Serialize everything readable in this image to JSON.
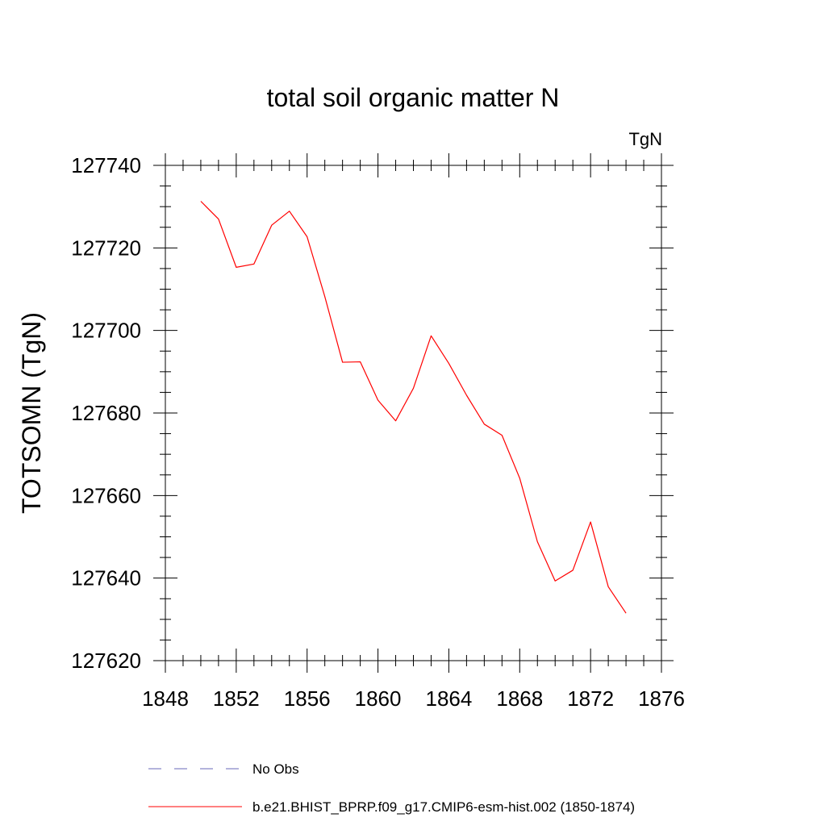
{
  "chart_data": {
    "type": "line",
    "title": "total soil organic matter N",
    "units_label": "TgN",
    "xlabel": "",
    "ylabel": "TOTSOMN  (TgN)",
    "xlim": [
      1848,
      1876
    ],
    "ylim": [
      127620,
      127740
    ],
    "xticks": [
      1848,
      1852,
      1856,
      1860,
      1864,
      1868,
      1872,
      1876
    ],
    "yticks": [
      127620,
      127640,
      127660,
      127680,
      127700,
      127720,
      127740
    ],
    "x_minor_step": 1,
    "y_minor_step": 5,
    "grid": false,
    "legend_position": "bottom",
    "series": [
      {
        "name": "b.e21.BHIST_BPRP.f09_g17.CMIP6-esm-hist.002 (1850-1874)",
        "color": "#ff0000",
        "dash": "solid",
        "x": [
          1850,
          1851,
          1852,
          1853,
          1854,
          1855,
          1856,
          1857,
          1858,
          1859,
          1860,
          1861,
          1862,
          1863,
          1864,
          1865,
          1866,
          1867,
          1868,
          1869,
          1870,
          1871,
          1872,
          1873,
          1874
        ],
        "values": [
          127731.3,
          127727.0,
          127715.3,
          127716.1,
          127725.5,
          127728.9,
          127722.7,
          127708.2,
          127692.3,
          127692.4,
          127683.1,
          127678.1,
          127686.0,
          127698.7,
          127692.0,
          127684.3,
          127677.3,
          127674.6,
          127664.2,
          127648.8,
          127639.3,
          127641.9,
          127653.6,
          127637.9,
          127631.5
        ]
      }
    ],
    "legend": [
      {
        "name": "No Obs",
        "color": "#6a6ab8",
        "dash": "dashed"
      },
      {
        "name": "b.e21.BHIST_BPRP.f09_g17.CMIP6-esm-hist.002 (1850-1874)",
        "color": "#ff0000",
        "dash": "solid"
      }
    ]
  }
}
